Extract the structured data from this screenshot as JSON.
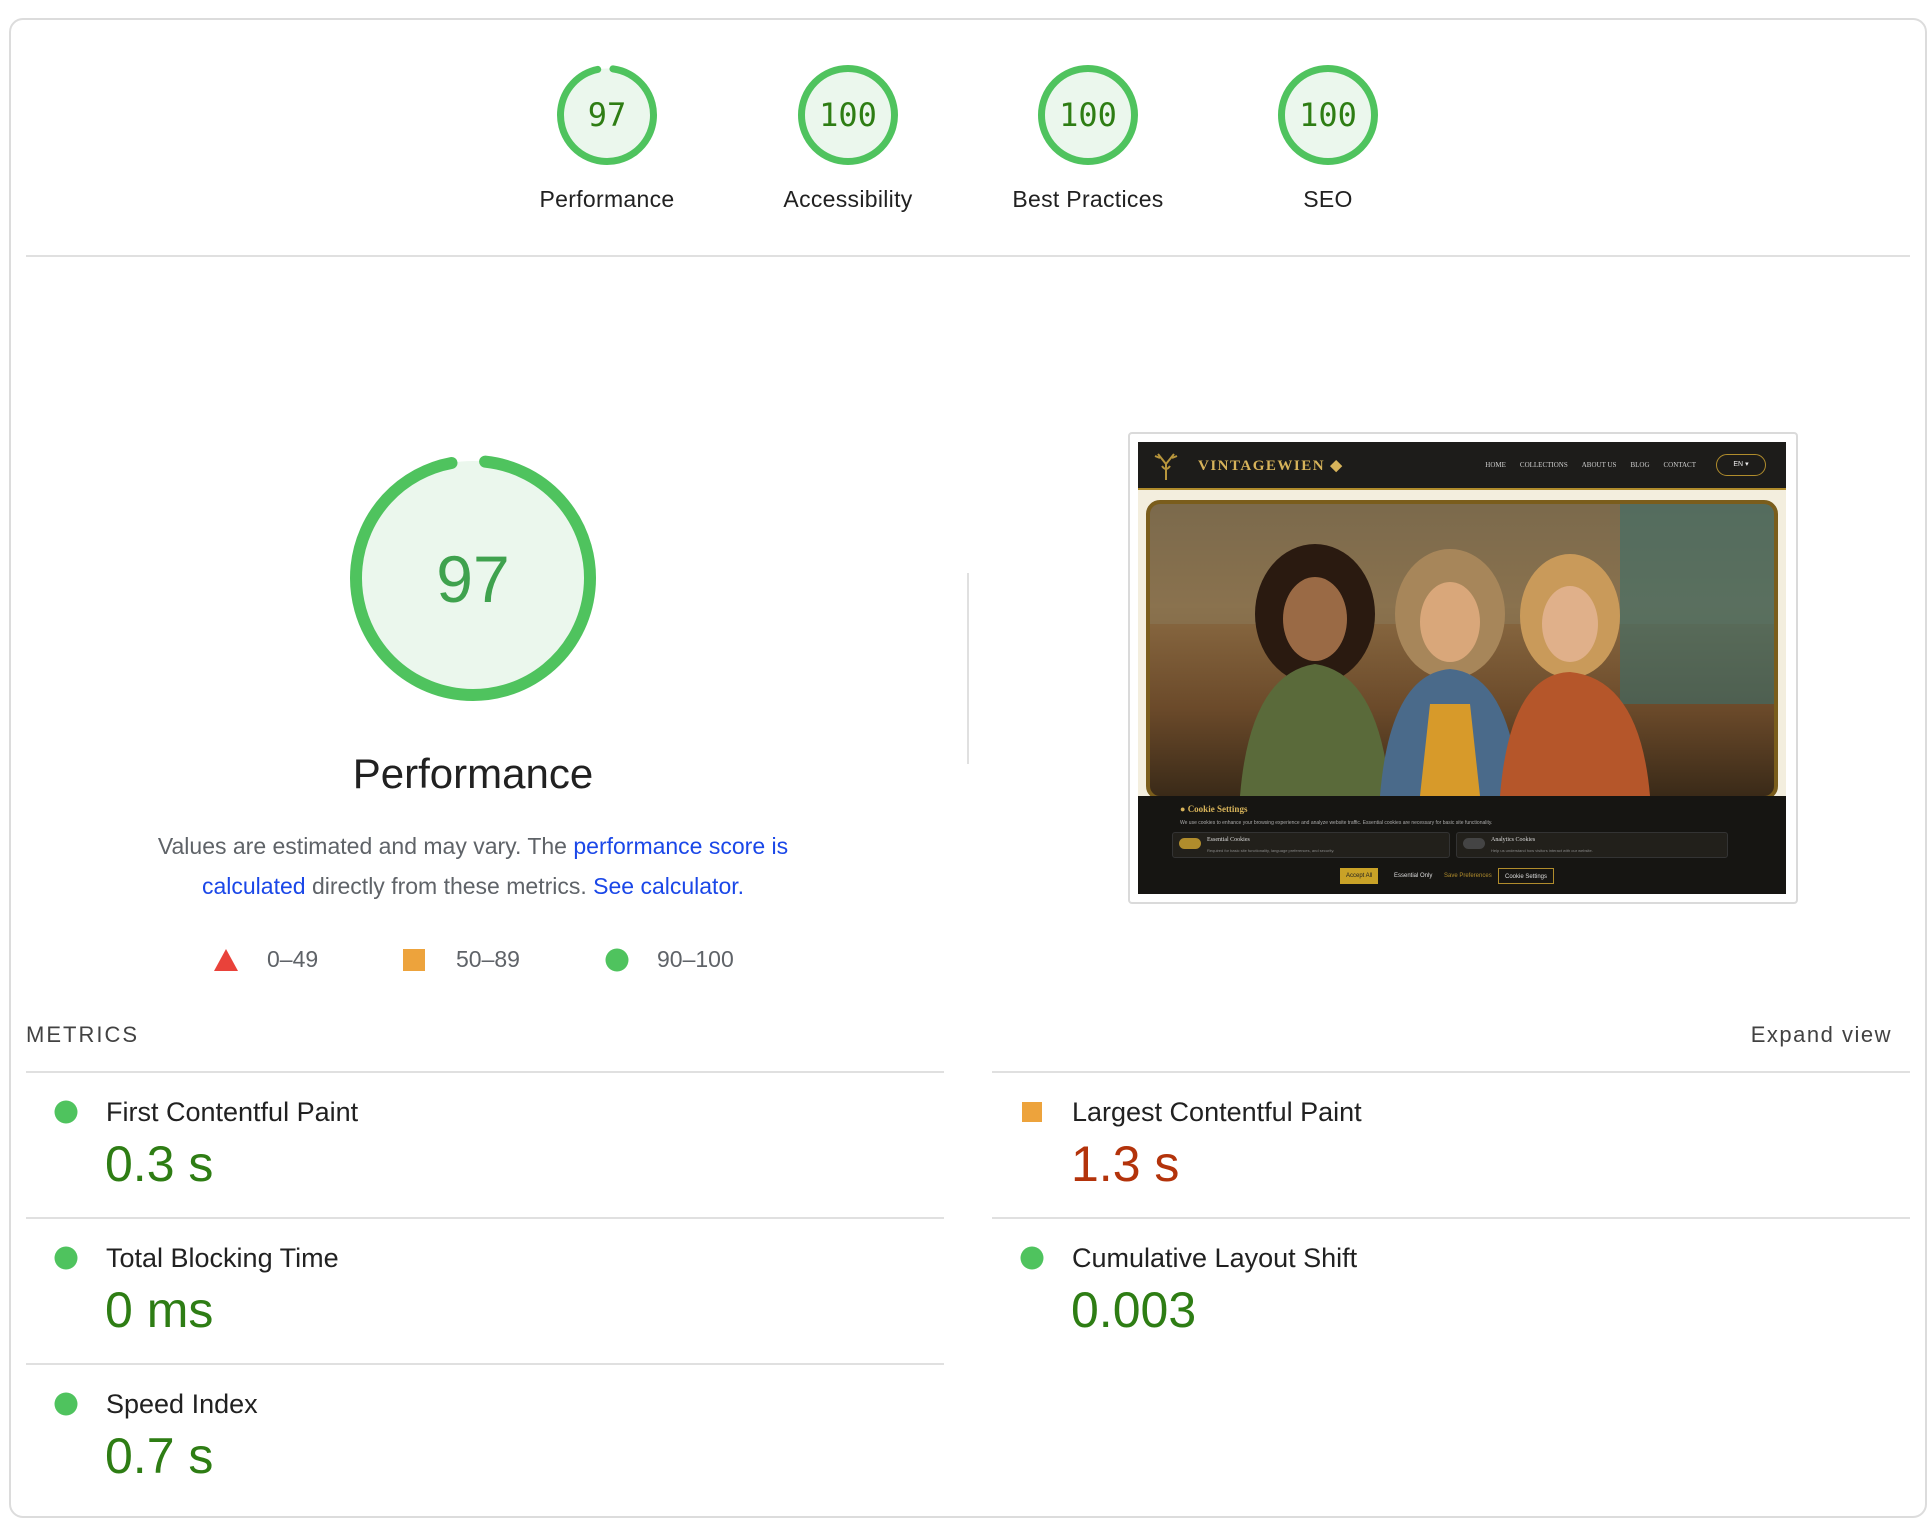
{
  "colors": {
    "pass": "#4fc35e",
    "pass_fill": "#ebf7ed",
    "pass_text": "#2e7d14",
    "average": "#eda33c",
    "average_text": "#b3330b",
    "fail": "#e9423a",
    "link": "#1a47e8"
  },
  "categories": [
    {
      "label": "Performance",
      "score": 97
    },
    {
      "label": "Accessibility",
      "score": 100
    },
    {
      "label": "Best Practices",
      "score": 100
    },
    {
      "label": "SEO",
      "score": 100
    }
  ],
  "performance": {
    "score": 97,
    "title": "Performance",
    "desc_prefix": "Values are estimated and may vary. The ",
    "desc_link1": "performance score is calculated",
    "desc_middle": " directly from these metrics. ",
    "desc_link2": "See calculator.",
    "legend": [
      {
        "icon": "triangle-icon",
        "label": "0–49"
      },
      {
        "icon": "square-icon",
        "label": "50–89"
      },
      {
        "icon": "circle-icon",
        "label": "90–100"
      }
    ]
  },
  "screenshot": {
    "logo": "VINTAGEWIEN",
    "nav": [
      "HOME",
      "COLLECTIONS",
      "ABOUT US",
      "BLOG",
      "CONTACT"
    ],
    "lang": "EN",
    "cookie_title": "Cookie Settings",
    "cookie_text": "We use cookies to enhance your browsing experience and analyze website traffic. Essential cookies are necessary for basic site functionality.",
    "essential_title": "Essential Cookies",
    "essential_sub": "Required for basic site functionality, language preferences, and security.",
    "analytics_title": "Analytics Cookies",
    "analytics_sub": "Help us understand how visitors interact with our website.",
    "btn_accept": "Accept All",
    "btn_essential": "Essential Only",
    "btn_save": "Save Preferences",
    "btn_settings": "Cookie Settings"
  },
  "metrics": {
    "heading": "METRICS",
    "expand": "Expand view",
    "items": [
      {
        "title": "First Contentful Paint",
        "value": "0.3 s",
        "rating": "pass"
      },
      {
        "title": "Largest Contentful Paint",
        "value": "1.3 s",
        "rating": "average"
      },
      {
        "title": "Total Blocking Time",
        "value": "0 ms",
        "rating": "pass"
      },
      {
        "title": "Cumulative Layout Shift",
        "value": "0.003",
        "rating": "pass"
      },
      {
        "title": "Speed Index",
        "value": "0.7 s",
        "rating": "pass"
      }
    ]
  }
}
